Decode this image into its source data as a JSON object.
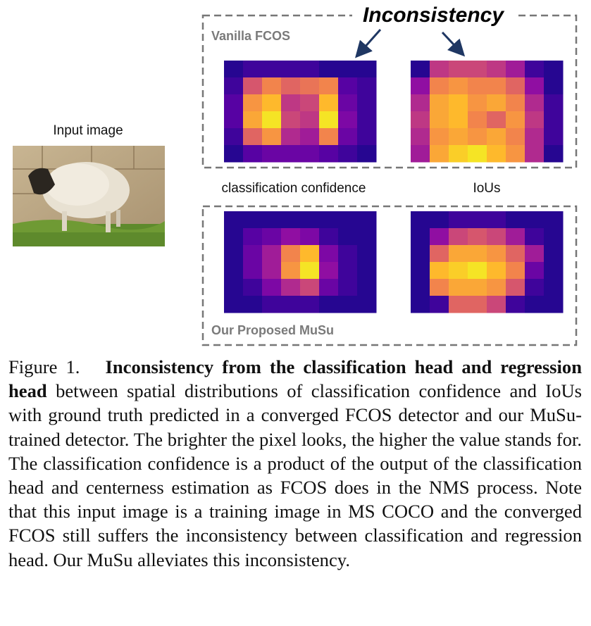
{
  "figure": {
    "input_label": "Input image",
    "top_box_label": "Vanilla FCOS",
    "bottom_box_label": "Our Proposed MuSu",
    "callout": "Inconsistency",
    "column_labels": [
      "classification confidence",
      "IoUs"
    ],
    "heatmaps": [
      {
        "grid": [
          [
            0.05,
            0.1,
            0.1,
            0.1,
            0.1,
            0.05,
            0.05,
            0.05
          ],
          [
            0.1,
            0.55,
            0.7,
            0.6,
            0.65,
            0.7,
            0.15,
            0.1
          ],
          [
            0.15,
            0.75,
            0.85,
            0.45,
            0.5,
            0.85,
            0.2,
            0.1
          ],
          [
            0.15,
            0.8,
            0.95,
            0.5,
            0.45,
            0.95,
            0.25,
            0.1
          ],
          [
            0.1,
            0.6,
            0.75,
            0.4,
            0.35,
            0.7,
            0.2,
            0.1
          ],
          [
            0.05,
            0.15,
            0.2,
            0.2,
            0.2,
            0.15,
            0.1,
            0.05
          ]
        ]
      },
      {
        "grid": [
          [
            0.05,
            0.45,
            0.5,
            0.5,
            0.45,
            0.35,
            0.1,
            0.05
          ],
          [
            0.3,
            0.7,
            0.75,
            0.7,
            0.7,
            0.6,
            0.3,
            0.05
          ],
          [
            0.4,
            0.8,
            0.85,
            0.75,
            0.8,
            0.7,
            0.4,
            0.1
          ],
          [
            0.45,
            0.8,
            0.85,
            0.7,
            0.6,
            0.75,
            0.45,
            0.1
          ],
          [
            0.4,
            0.75,
            0.8,
            0.75,
            0.8,
            0.7,
            0.4,
            0.1
          ],
          [
            0.35,
            0.8,
            0.9,
            0.95,
            0.85,
            0.75,
            0.4,
            0.05
          ]
        ]
      },
      {
        "grid": [
          [
            0.05,
            0.05,
            0.05,
            0.05,
            0.05,
            0.05,
            0.05,
            0.05
          ],
          [
            0.05,
            0.15,
            0.2,
            0.3,
            0.25,
            0.1,
            0.05,
            0.05
          ],
          [
            0.05,
            0.2,
            0.35,
            0.7,
            0.85,
            0.25,
            0.1,
            0.05
          ],
          [
            0.05,
            0.2,
            0.35,
            0.75,
            0.95,
            0.3,
            0.1,
            0.05
          ],
          [
            0.05,
            0.1,
            0.25,
            0.4,
            0.5,
            0.2,
            0.1,
            0.05
          ],
          [
            0.05,
            0.05,
            0.1,
            0.1,
            0.1,
            0.05,
            0.05,
            0.05
          ]
        ]
      },
      {
        "grid": [
          [
            0.05,
            0.05,
            0.1,
            0.1,
            0.1,
            0.05,
            0.05,
            0.05
          ],
          [
            0.05,
            0.3,
            0.5,
            0.55,
            0.5,
            0.35,
            0.1,
            0.05
          ],
          [
            0.05,
            0.6,
            0.8,
            0.8,
            0.75,
            0.6,
            0.35,
            0.05
          ],
          [
            0.05,
            0.85,
            0.9,
            0.95,
            0.85,
            0.7,
            0.2,
            0.05
          ],
          [
            0.05,
            0.7,
            0.8,
            0.8,
            0.75,
            0.55,
            0.1,
            0.05
          ],
          [
            0.05,
            0.1,
            0.6,
            0.6,
            0.5,
            0.1,
            0.05,
            0.05
          ]
        ]
      }
    ]
  },
  "caption": {
    "label": "Figure 1.",
    "bold": "Inconsistency from the classification head and regression head",
    "body": "between spatial distributions of classification confidence and IoUs with ground truth predicted in a converged FCOS detector and our MuSu-trained detector. The brighter the pixel looks, the higher the value stands for. The classification confidence is a product of the output of the classification head and centerness estimation as FCOS does in the NMS process. Note that this input image is a training image in MS COCO and the converged FCOS still suffers the inconsistency between classification and regression head. Our MuSu alleviates this inconsistency."
  }
}
